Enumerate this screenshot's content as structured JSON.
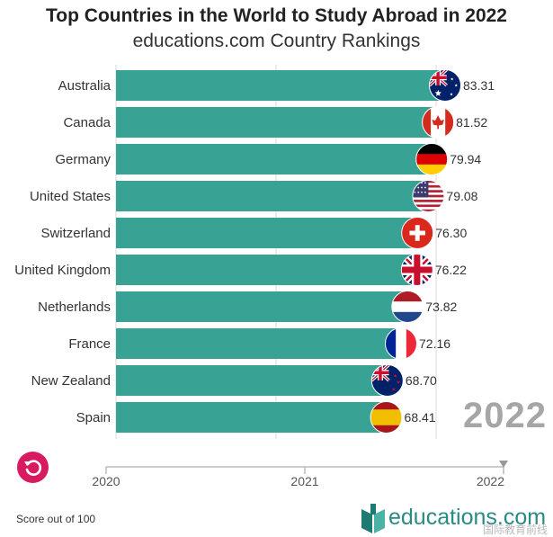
{
  "header": {
    "title": "Top Countries in the World to Study Abroad in 2022",
    "subtitle": "educations.com Country Rankings"
  },
  "chart_data": {
    "type": "bar",
    "orientation": "horizontal",
    "categories": [
      "Australia",
      "Canada",
      "Germany",
      "United States",
      "Switzerland",
      "United Kingdom",
      "Netherlands",
      "France",
      "New Zealand",
      "Spain"
    ],
    "values": [
      83.31,
      81.52,
      79.94,
      79.08,
      76.3,
      76.22,
      73.82,
      72.16,
      68.7,
      68.41
    ],
    "value_labels": [
      "83.31",
      "81.52",
      "79.94",
      "79.08",
      "76.30",
      "76.22",
      "73.82",
      "72.16",
      "68.70",
      "68.41"
    ],
    "flag_icons": [
      "australia-flag-icon",
      "canada-flag-icon",
      "germany-flag-icon",
      "usa-flag-icon",
      "switzerland-flag-icon",
      "uk-flag-icon",
      "netherlands-flag-icon",
      "france-flag-icon",
      "new-zealand-flag-icon",
      "spain-flag-icon"
    ],
    "bar_color": "#38a394",
    "year": "2022",
    "timeline": {
      "ticks": [
        "2020",
        "2021",
        "2022"
      ],
      "current": "2022"
    },
    "xlabel": "",
    "ylabel": "",
    "grid": true,
    "legend": "none"
  },
  "controls": {
    "replay_icon": "replay-icon",
    "color": "#d81b60"
  },
  "footer": {
    "note": "Score out of 100",
    "brand": "educations.com",
    "watermark": "国际教育前线"
  }
}
